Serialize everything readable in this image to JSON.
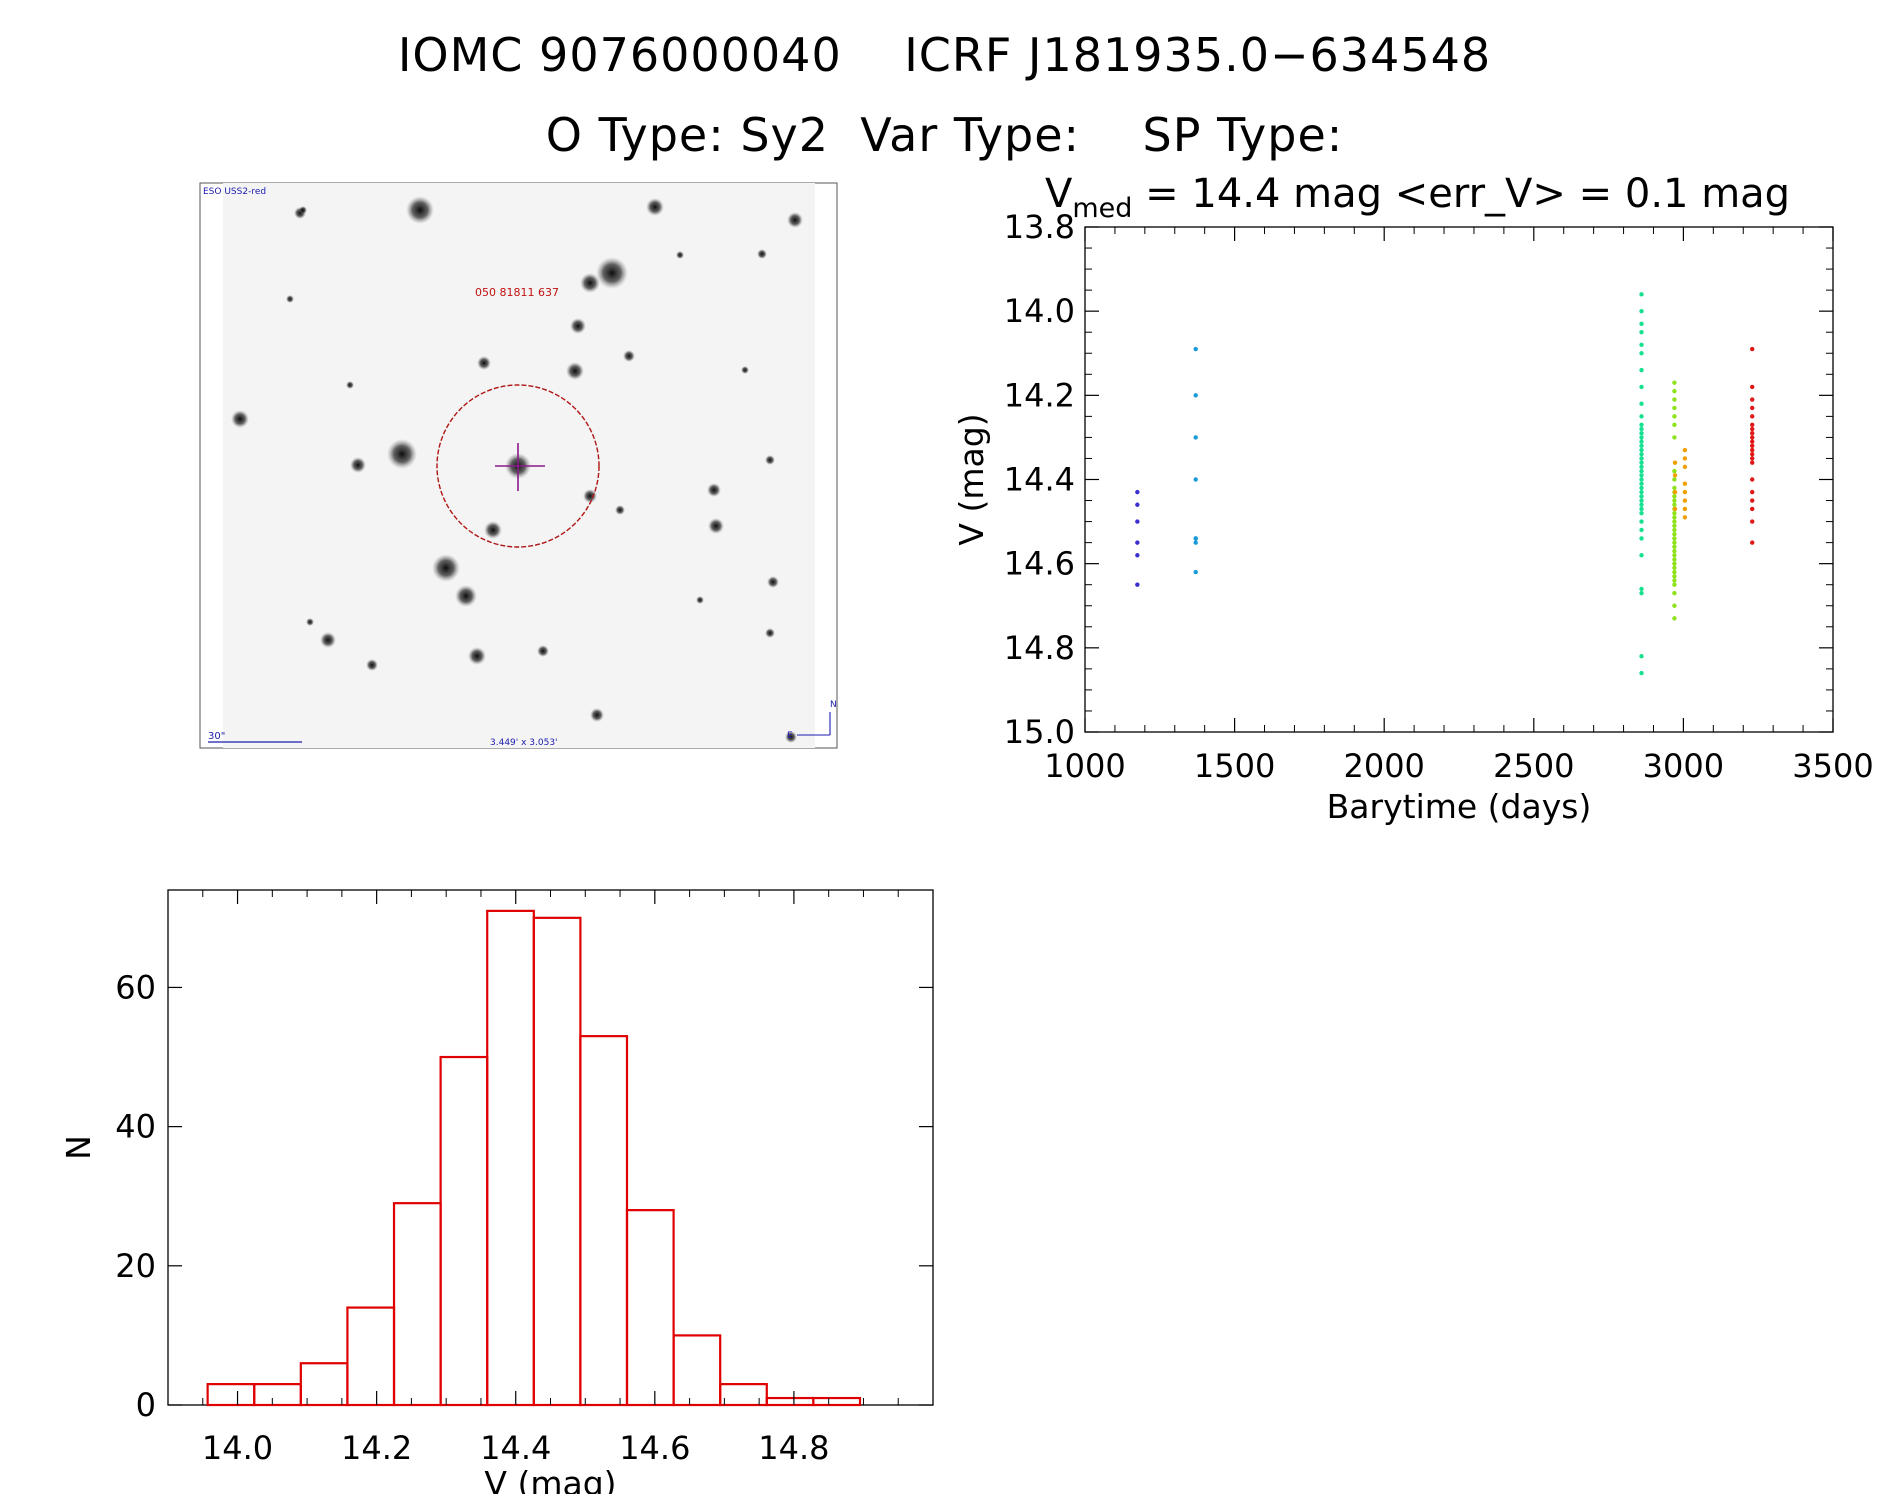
{
  "header": {
    "line1": "IOMC 9076000040    ICRF J181935.0−634548",
    "line2": "O Type: Sy2  Var Type:    SP Type:"
  },
  "finder": {
    "survey_label": "ESO USS2-red",
    "target_label": "050 81811 637",
    "scale_label": "30\"",
    "fov_label": "3.449' x 3.053'",
    "north_label": "N",
    "east_label": "E"
  },
  "lightcurve_header": {
    "v_symbol": "V",
    "v_sub": "med",
    "rest": " = 14.4 mag <err_V> = 0.1 mag"
  },
  "chart_data": [
    {
      "type": "scatter",
      "xlabel": "Barytime (days)",
      "ylabel": "V (mag)",
      "xlim": [
        1000,
        3500
      ],
      "ylim": [
        15.0,
        13.8
      ],
      "y_inverted": true,
      "xticks": [
        "1000",
        "1500",
        "2000",
        "2500",
        "3000",
        "3500"
      ],
      "yticks": [
        "13.8",
        "14.0",
        "14.2",
        "14.4",
        "14.6",
        "14.8",
        "15.0"
      ],
      "series": [
        {
          "color": "#3a2fd0",
          "x": [
            1175,
            1175,
            1175,
            1175,
            1175,
            1175
          ],
          "y": [
            14.43,
            14.46,
            14.55,
            14.58,
            14.65,
            14.5
          ]
        },
        {
          "color": "#1a9ad8",
          "x": [
            1370,
            1370,
            1370,
            1370,
            1370,
            1370,
            1370,
            1370
          ],
          "y": [
            14.09,
            14.2,
            14.3,
            14.4,
            14.54,
            14.55,
            14.62,
            14.54
          ]
        },
        {
          "color": "#17e08f",
          "x": [
            2860,
            2860,
            2860,
            2860,
            2860,
            2860,
            2860,
            2860,
            2860,
            2860,
            2860,
            2860,
            2860,
            2860,
            2860,
            2860,
            2860,
            2860,
            2860,
            2860,
            2860,
            2860,
            2860,
            2860,
            2860,
            2860,
            2860,
            2860,
            2860,
            2860,
            2860,
            2860,
            2860,
            2860,
            2860,
            2860,
            2860,
            2860,
            2860,
            2860
          ],
          "y": [
            13.96,
            14.0,
            14.03,
            14.05,
            14.08,
            14.1,
            14.14,
            14.18,
            14.22,
            14.25,
            14.27,
            14.28,
            14.29,
            14.3,
            14.31,
            14.32,
            14.33,
            14.34,
            14.35,
            14.36,
            14.37,
            14.38,
            14.39,
            14.4,
            14.41,
            14.42,
            14.43,
            14.44,
            14.45,
            14.46,
            14.47,
            14.48,
            14.5,
            14.52,
            14.54,
            14.58,
            14.66,
            14.67,
            14.82,
            14.86
          ]
        },
        {
          "color": "#8ee21a",
          "x": [
            2970,
            2970,
            2970,
            2970,
            2970,
            2970,
            2970,
            2970,
            2970,
            2970,
            2970,
            2970,
            2970,
            2970,
            2970,
            2970,
            2970,
            2970,
            2970,
            2970,
            2970,
            2970,
            2970,
            2970,
            2970,
            2970,
            2970,
            2970,
            2970,
            2970,
            2970,
            2970,
            2970,
            2970,
            2970,
            2970
          ],
          "y": [
            14.17,
            14.19,
            14.21,
            14.23,
            14.25,
            14.27,
            14.3,
            14.38,
            14.4,
            14.42,
            14.43,
            14.44,
            14.45,
            14.46,
            14.47,
            14.48,
            14.49,
            14.5,
            14.51,
            14.52,
            14.53,
            14.54,
            14.55,
            14.56,
            14.57,
            14.58,
            14.59,
            14.6,
            14.61,
            14.62,
            14.63,
            14.64,
            14.65,
            14.67,
            14.7,
            14.73
          ]
        },
        {
          "color": "#f0a000",
          "x": [
            2972,
            2972,
            2972,
            2972,
            3005,
            3005,
            3005,
            3005,
            3005,
            3005,
            3005,
            3005
          ],
          "y": [
            14.36,
            14.39,
            14.43,
            14.47,
            14.33,
            14.35,
            14.37,
            14.41,
            14.43,
            14.45,
            14.47,
            14.49
          ]
        },
        {
          "color": "#e01818",
          "x": [
            3230,
            3230,
            3230,
            3230,
            3230,
            3230,
            3230,
            3230,
            3230,
            3230,
            3230,
            3230,
            3230,
            3230,
            3230,
            3230,
            3230,
            3230,
            3230,
            3230,
            3230
          ],
          "y": [
            14.09,
            14.18,
            14.21,
            14.23,
            14.25,
            14.27,
            14.28,
            14.29,
            14.3,
            14.31,
            14.32,
            14.33,
            14.34,
            14.35,
            14.36,
            14.4,
            14.43,
            14.45,
            14.47,
            14.5,
            14.55
          ]
        }
      ]
    },
    {
      "type": "bar",
      "xlabel": "V (mag)",
      "ylabel": "N",
      "xlim": [
        13.9,
        15.0
      ],
      "ylim": [
        0,
        74
      ],
      "xticks": [
        "14.0",
        "14.2",
        "14.4",
        "14.6",
        "14.8"
      ],
      "yticks": [
        "0",
        "20",
        "40",
        "60"
      ],
      "bar_color": "#e00000",
      "bin_edges": [
        13.957,
        14.024,
        14.091,
        14.158,
        14.225,
        14.292,
        14.359,
        14.426,
        14.493,
        14.56,
        14.627,
        14.694,
        14.761,
        14.828,
        14.895
      ],
      "values": [
        3,
        3,
        6,
        14,
        29,
        50,
        71,
        70,
        53,
        28,
        10,
        3,
        1,
        1
      ]
    }
  ]
}
